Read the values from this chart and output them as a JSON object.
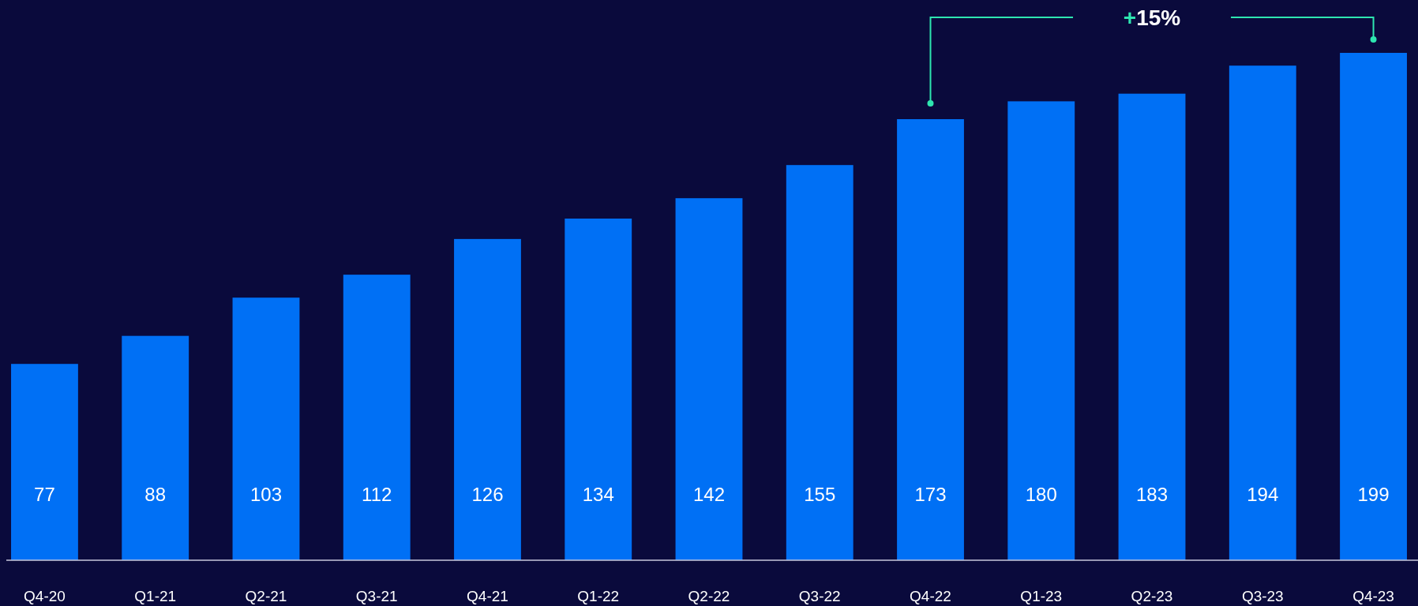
{
  "chart_data": {
    "type": "bar",
    "categories": [
      "Q4-20",
      "Q1-21",
      "Q2-21",
      "Q3-21",
      "Q4-21",
      "Q1-22",
      "Q2-22",
      "Q3-22",
      "Q4-22",
      "Q1-23",
      "Q2-23",
      "Q3-23",
      "Q4-23"
    ],
    "values": [
      77,
      88,
      103,
      112,
      126,
      134,
      142,
      155,
      173,
      180,
      183,
      194,
      199
    ],
    "color": "#0070f5",
    "data_labels": true,
    "annotations": [
      "+15%"
    ]
  }
}
